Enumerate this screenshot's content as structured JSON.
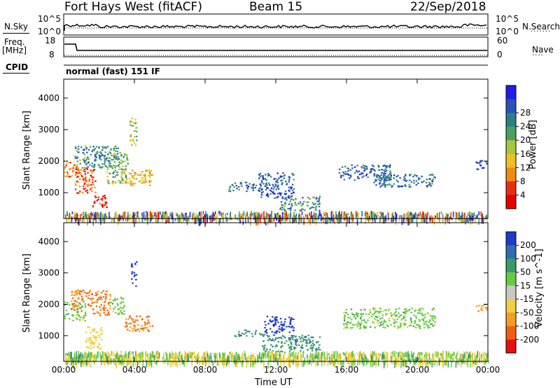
{
  "header": {
    "station": "Fort Hays West (fitACF)",
    "beam": "Beam 15",
    "date": "22/Sep/2018"
  },
  "top_panels": {
    "nsky_label": "N.Sky",
    "nsky_ticks": [
      "10^5",
      "10^0"
    ],
    "nsearch_label": "N.Search",
    "nsearch_ticks": [
      "10^5",
      "10^0"
    ],
    "freq_label": "Freq.",
    "freq_unit": "[MHz]",
    "freq_ticks": [
      "18",
      "8"
    ],
    "nave_label": "Nave",
    "nave_ticks": [
      "60",
      "0"
    ],
    "cpid_label": "CPID",
    "cpid_text": "normal (fast) 151 IF"
  },
  "chart_data": [
    {
      "type": "heatmap",
      "panel": "power",
      "ylabel": "Slant Range [km]",
      "xlabel": "Time UT",
      "x_range_hours": [
        0,
        24
      ],
      "x_ticks": [
        "00:00",
        "04:00",
        "08:00",
        "12:00",
        "16:00",
        "20:00",
        "00:00"
      ],
      "ylim": [
        180,
        4600
      ],
      "y_ticks": [
        1000,
        2000,
        3000,
        4000
      ],
      "colorbar": {
        "label": "Power [dB]",
        "ticks": [
          "4",
          "8",
          "12",
          "16",
          "20",
          "24",
          "28"
        ],
        "colors": [
          "#1e1ee6",
          "#2a52b8",
          "#2e7e88",
          "#4aa060",
          "#a8c640",
          "#f0c020",
          "#f08a10",
          "#e83010",
          "#e80000"
        ]
      },
      "regions": [
        {
          "t0": 0.0,
          "t1": 0.8,
          "r0": 1500,
          "r1": 2000,
          "v": 22
        },
        {
          "t0": 0.6,
          "t1": 1.8,
          "r0": 1000,
          "r1": 1800,
          "v": 26
        },
        {
          "t0": 1.6,
          "t1": 2.4,
          "r0": 550,
          "r1": 1000,
          "v": 28
        },
        {
          "t0": 0.6,
          "t1": 3.2,
          "r0": 1800,
          "r1": 2500,
          "v": 10
        },
        {
          "t0": 2.4,
          "t1": 3.6,
          "r0": 1300,
          "r1": 2300,
          "v": 14
        },
        {
          "t0": 3.2,
          "t1": 5.0,
          "r0": 1250,
          "r1": 1750,
          "v": 20
        },
        {
          "t0": 3.7,
          "t1": 4.1,
          "r0": 2500,
          "r1": 3400,
          "v": 16
        },
        {
          "t0": 9.3,
          "t1": 11.2,
          "r0": 1050,
          "r1": 1350,
          "v": 8
        },
        {
          "t0": 11.0,
          "t1": 13.0,
          "r0": 850,
          "r1": 1650,
          "v": 6
        },
        {
          "t0": 12.2,
          "t1": 14.5,
          "r0": 450,
          "r1": 900,
          "v": 10
        },
        {
          "t0": 15.5,
          "t1": 18.5,
          "r0": 1400,
          "r1": 1900,
          "v": 6
        },
        {
          "t0": 17.5,
          "t1": 21.0,
          "r0": 1200,
          "r1": 1600,
          "v": 8
        },
        {
          "t0": 23.3,
          "t1": 24.0,
          "r0": 1750,
          "r1": 2050,
          "v": 6
        },
        {
          "t0": 0.0,
          "t1": 24.0,
          "r0": 180,
          "r1": 420,
          "v": 18
        }
      ]
    },
    {
      "type": "heatmap",
      "panel": "velocity",
      "ylabel": "Slant Range [km]",
      "xlabel": "Time UT",
      "x_range_hours": [
        0,
        24
      ],
      "x_ticks": [
        "00:00",
        "04:00",
        "08:00",
        "12:00",
        "16:00",
        "20:00",
        "00:00"
      ],
      "ylim": [
        180,
        4600
      ],
      "y_ticks": [
        1000,
        2000,
        3000,
        4000
      ],
      "colorbar": {
        "label": "Velocity [m s^-1]",
        "ticks": [
          "200",
          "100",
          "50",
          "15",
          "-15",
          "-50",
          "-100",
          "-200"
        ],
        "colors": [
          "#1e3cc8",
          "#2e6eb0",
          "#3c9a6a",
          "#66cc44",
          "#c8c8c0",
          "#f0d040",
          "#f0a020",
          "#f06010",
          "#e81010"
        ]
      },
      "regions": [
        {
          "t0": 0.0,
          "t1": 1.2,
          "r0": 1500,
          "r1": 2100,
          "v": 0
        },
        {
          "t0": 0.4,
          "t1": 1.6,
          "r0": 1850,
          "r1": 2500,
          "v": -200
        },
        {
          "t0": 1.6,
          "t1": 2.6,
          "r0": 1650,
          "r1": 2450,
          "v": -200
        },
        {
          "t0": 1.2,
          "t1": 2.2,
          "r0": 600,
          "r1": 1300,
          "v": -80
        },
        {
          "t0": 2.6,
          "t1": 3.4,
          "r0": 1700,
          "r1": 2250,
          "v": 0
        },
        {
          "t0": 3.4,
          "t1": 5.0,
          "r0": 1150,
          "r1": 1650,
          "v": -200
        },
        {
          "t0": 3.8,
          "t1": 4.1,
          "r0": 2600,
          "r1": 3400,
          "v": 200
        },
        {
          "t0": 9.6,
          "t1": 11.5,
          "r0": 1000,
          "r1": 1200,
          "v": 40
        },
        {
          "t0": 11.3,
          "t1": 13.0,
          "r0": 1100,
          "r1": 1650,
          "v": 200
        },
        {
          "t0": 11.2,
          "t1": 14.5,
          "r0": 500,
          "r1": 1050,
          "v": 40
        },
        {
          "t0": 15.8,
          "t1": 21.0,
          "r0": 1250,
          "r1": 1900,
          "v": 0
        },
        {
          "t0": 23.3,
          "t1": 24.0,
          "r0": 1800,
          "r1": 2050,
          "v": -120
        },
        {
          "t0": 0.0,
          "t1": 24.0,
          "r0": 180,
          "r1": 520,
          "v": -40
        }
      ]
    }
  ]
}
